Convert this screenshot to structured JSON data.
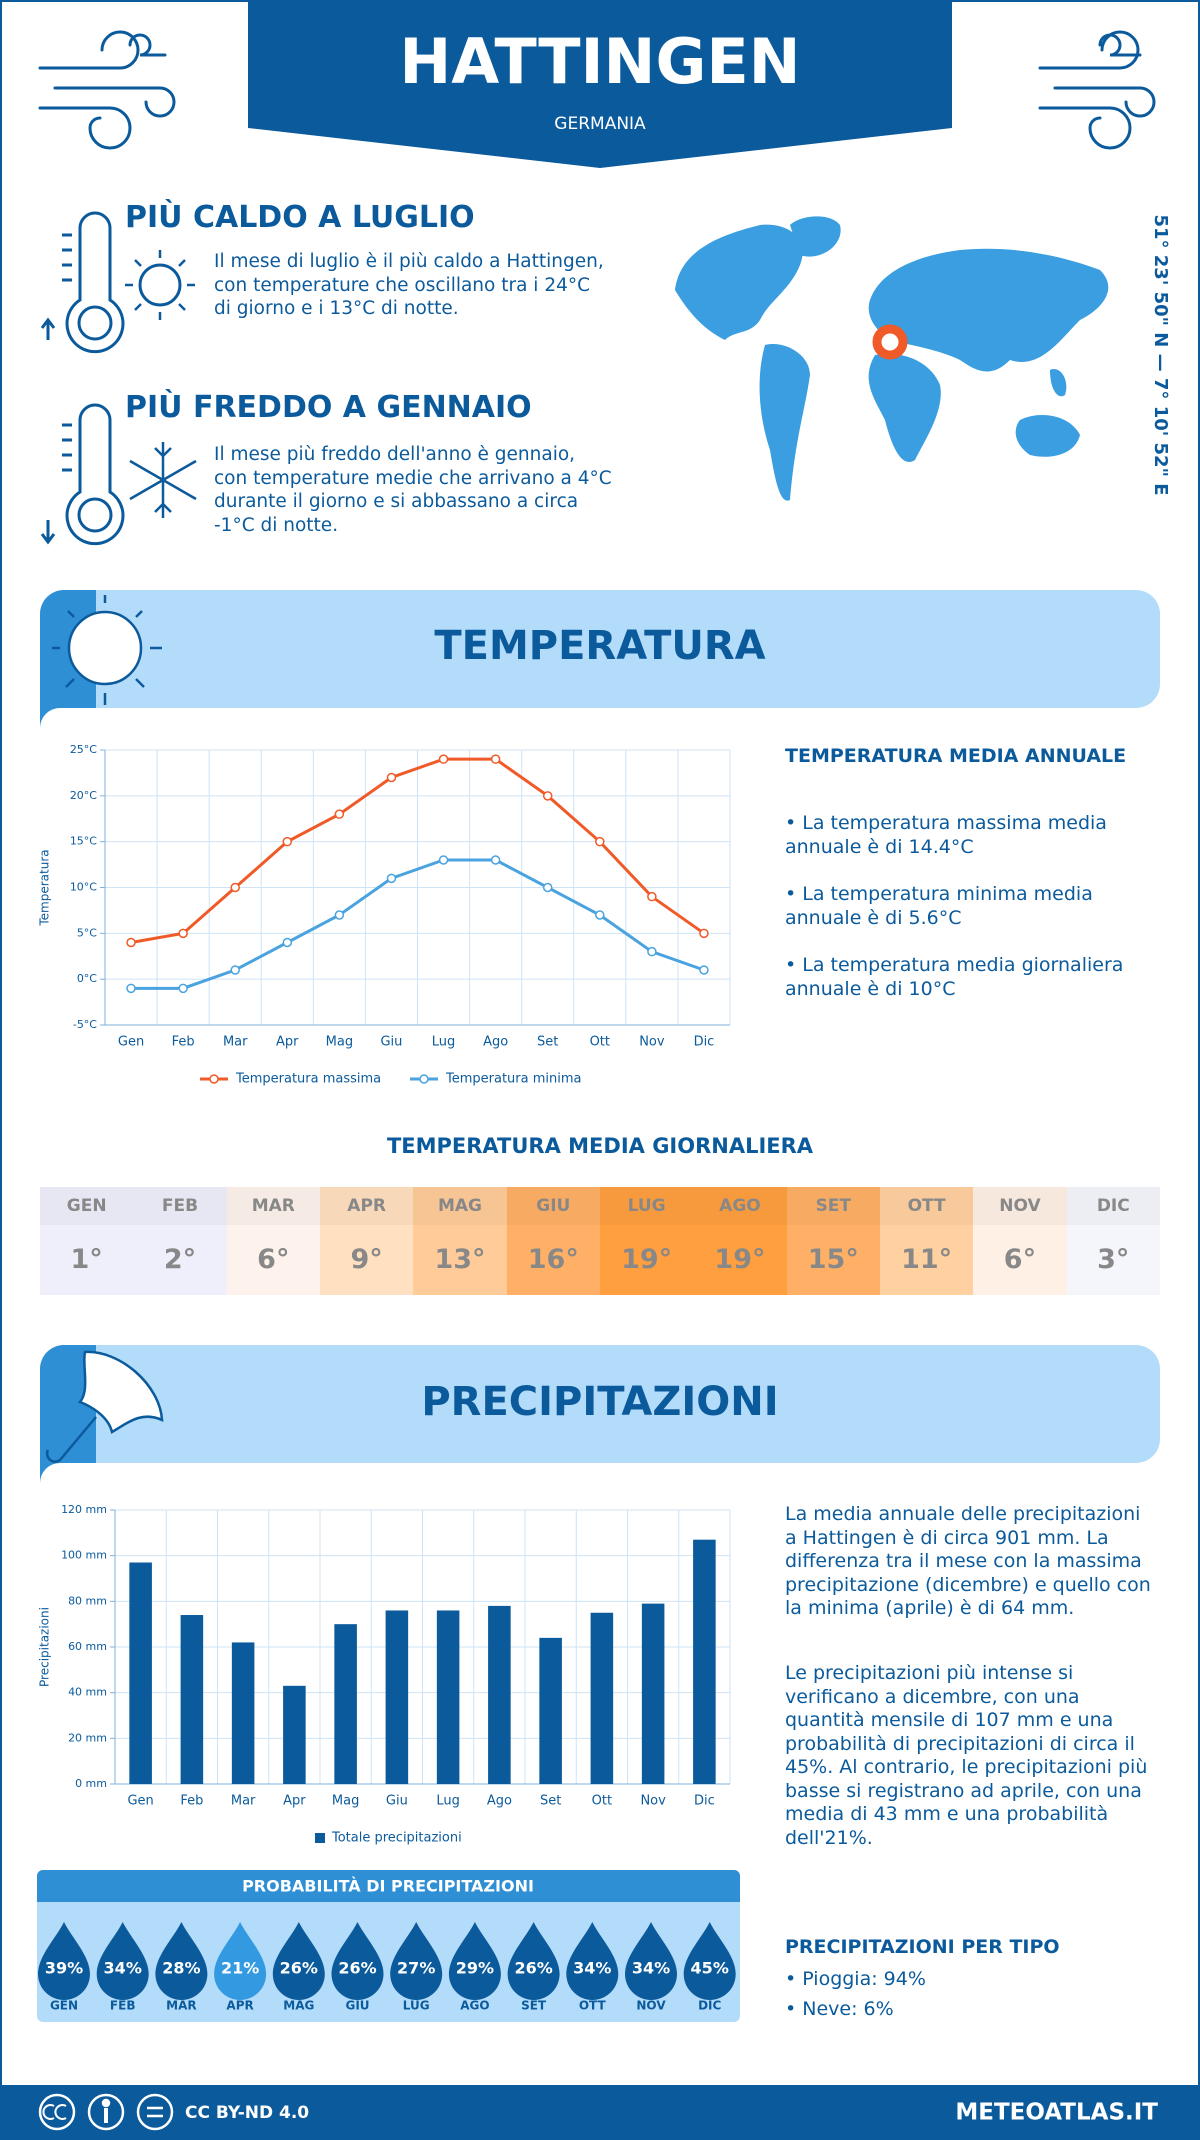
{
  "header": {
    "title": "HATTINGEN",
    "subtitle": "GERMANIA"
  },
  "coordinates": "51° 23' 50\" N — 7° 10' 52\" E",
  "hottest": {
    "title": "PIÙ CALDO A LUGLIO",
    "text": "Il mese di luglio è il più caldo a Hattingen, con temperature che oscillano tra i 24°C di giorno e i 13°C di notte."
  },
  "coldest": {
    "title": "PIÙ FREDDO A GENNAIO",
    "text": "Il mese più freddo dell'anno è gennaio, con temperature medie che arrivano a 4°C durante il giorno e si abbassano a circa -1°C di notte."
  },
  "temperature_section": {
    "title": "TEMPERATURA"
  },
  "annual": {
    "title": "TEMPERATURA MEDIA ANNUALE",
    "items": [
      "• La temperatura massima media annuale è di 14.4°C",
      "• La temperatura minima media annuale è di 5.6°C",
      "• La temperatura media giornaliera annuale è di 10°C"
    ]
  },
  "daily": {
    "title": "TEMPERATURA MEDIA GIORNALIERA",
    "months": [
      "GEN",
      "FEB",
      "MAR",
      "APR",
      "MAG",
      "GIU",
      "LUG",
      "AGO",
      "SET",
      "OTT",
      "NOV",
      "DIC"
    ],
    "values": [
      "1°",
      "2°",
      "6°",
      "9°",
      "13°",
      "16°",
      "19°",
      "19°",
      "15°",
      "11°",
      "6°",
      "3°"
    ],
    "colors": [
      "#efeffb",
      "#efeffb",
      "#fdf3ec",
      "#ffe0c0",
      "#ffcc99",
      "#ffb066",
      "#ff9f40",
      "#ff9f40",
      "#ffb066",
      "#ffd0a0",
      "#fff0e6",
      "#f5f5fc"
    ]
  },
  "precipitation_section": {
    "title": "PRECIPITAZIONI"
  },
  "precipitation_text": [
    "La media annuale delle precipitazioni a Hattingen è di circa 901 mm. La differenza tra il mese con la massima precipitazione (dicembre) e quello con la minima (aprile) è di 64 mm.",
    "Le precipitazioni più intense si verificano a dicembre, con una quantità mensile di 107 mm e una probabilità di precipitazioni di circa il 45%. Al contrario, le precipitazioni più basse si registrano ad aprile, con una media di 43 mm e una probabilità dell'21%."
  ],
  "probability": {
    "title": "PROBABILITÀ DI PRECIPITAZIONI",
    "months": [
      "GEN",
      "FEB",
      "MAR",
      "APR",
      "MAG",
      "GIU",
      "LUG",
      "AGO",
      "SET",
      "OTT",
      "NOV",
      "DIC"
    ],
    "values": [
      "39%",
      "34%",
      "28%",
      "21%",
      "26%",
      "26%",
      "27%",
      "29%",
      "26%",
      "34%",
      "34%",
      "45%"
    ],
    "colors": [
      "#0b5a9c",
      "#0b5a9c",
      "#0b5a9c",
      "#3399e0",
      "#0b5a9c",
      "#0b5a9c",
      "#0b5a9c",
      "#0b5a9c",
      "#0b5a9c",
      "#0b5a9c",
      "#0b5a9c",
      "#0b5a9c"
    ]
  },
  "precipitation_type": {
    "title": "PRECIPITAZIONI PER TIPO",
    "items": [
      "• Pioggia: 94%",
      "• Neve: 6%"
    ]
  },
  "footer": {
    "license": "CC BY-ND 4.0",
    "site": "METEOATLAS.IT"
  },
  "chart_data": [
    {
      "type": "line",
      "y_label": "Temperatura",
      "categories": [
        "Gen",
        "Feb",
        "Mar",
        "Apr",
        "Mag",
        "Giu",
        "Lug",
        "Ago",
        "Set",
        "Ott",
        "Nov",
        "Dic"
      ],
      "series": [
        {
          "name": "Temperatura massima",
          "color": "#f05a28",
          "values": [
            4,
            5,
            10,
            15,
            18,
            22,
            24,
            24,
            20,
            15,
            9,
            5
          ]
        },
        {
          "name": "Temperatura minima",
          "color": "#4aa3df",
          "values": [
            -1,
            -1,
            1,
            4,
            7,
            11,
            13,
            13,
            10,
            7,
            3,
            1
          ]
        }
      ],
      "ylim": [
        -5,
        25
      ],
      "yticks": [
        {
          "value": -5,
          "label": "-5°C"
        },
        {
          "value": 0,
          "label": "0°C"
        },
        {
          "value": 5,
          "label": "5°C"
        },
        {
          "value": 10,
          "label": "10°C"
        },
        {
          "value": 15,
          "label": "15°C"
        },
        {
          "value": 20,
          "label": "20°C"
        },
        {
          "value": 25,
          "label": "25°C"
        }
      ],
      "grid": true
    },
    {
      "type": "bar",
      "y_label": "Precipitazioni",
      "categories": [
        "Gen",
        "Feb",
        "Mar",
        "Apr",
        "Mag",
        "Giu",
        "Lug",
        "Ago",
        "Set",
        "Ott",
        "Nov",
        "Dic"
      ],
      "series": [
        {
          "name": "Totale precipitazioni",
          "color": "#0b5a9c",
          "values": [
            97,
            74,
            62,
            43,
            70,
            76,
            76,
            78,
            64,
            75,
            79,
            107
          ]
        }
      ],
      "ylim": [
        0,
        120
      ],
      "yticks": [
        {
          "value": 0,
          "label": "0 mm"
        },
        {
          "value": 20,
          "label": "20 mm"
        },
        {
          "value": 40,
          "label": "40 mm"
        },
        {
          "value": 60,
          "label": "60 mm"
        },
        {
          "value": 80,
          "label": "80 mm"
        },
        {
          "value": 100,
          "label": "100 mm"
        },
        {
          "value": 120,
          "label": "120 mm"
        }
      ],
      "grid": true
    }
  ]
}
